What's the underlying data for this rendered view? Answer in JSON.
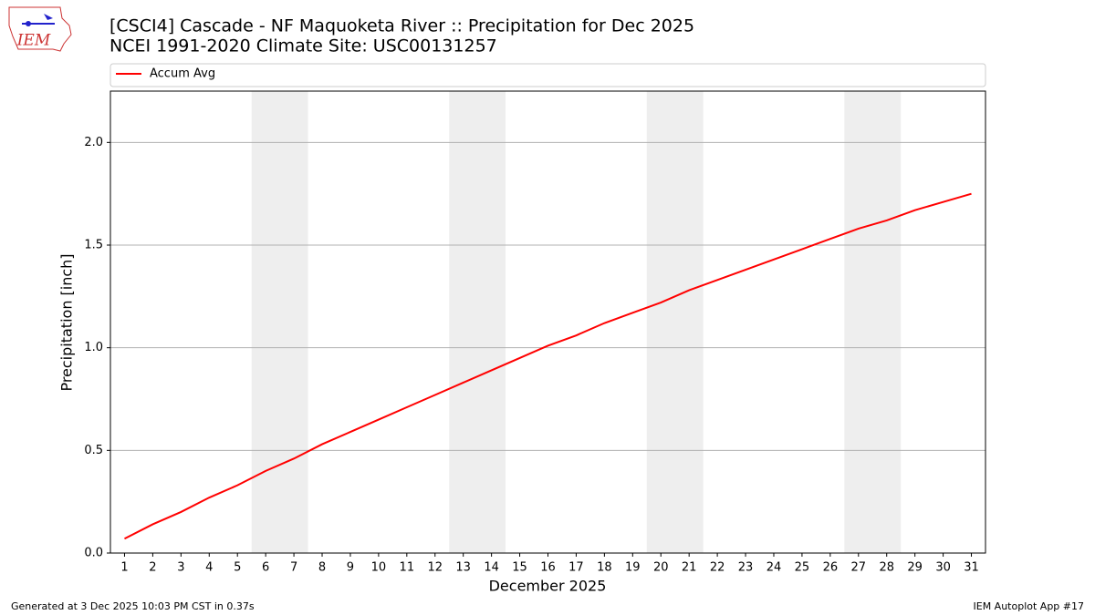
{
  "chart_data": {
    "type": "line",
    "title": "[CSCI4] Cascade - NF Maquoketa River :: Precipitation for Dec 2025",
    "subtitle": "NCEI 1991-2020 Climate Site: USC00131257",
    "logo_text": "IEM",
    "x_label": "December 2025",
    "y_label": "Precipitation [inch]",
    "x": [
      1,
      2,
      3,
      4,
      5,
      6,
      7,
      8,
      9,
      10,
      11,
      12,
      13,
      14,
      15,
      16,
      17,
      18,
      19,
      20,
      21,
      22,
      23,
      24,
      25,
      26,
      27,
      28,
      29,
      30,
      31
    ],
    "series": [
      {
        "name": "Accum Avg",
        "color": "#ff0000",
        "values": [
          0.07,
          0.14,
          0.2,
          0.27,
          0.33,
          0.4,
          0.46,
          0.53,
          0.59,
          0.65,
          0.71,
          0.77,
          0.83,
          0.89,
          0.95,
          1.01,
          1.06,
          1.12,
          1.17,
          1.22,
          1.28,
          1.33,
          1.38,
          1.43,
          1.48,
          1.53,
          1.58,
          1.62,
          1.67,
          1.71,
          1.75
        ]
      }
    ],
    "weekend_spans": [
      [
        5.5,
        7.5
      ],
      [
        12.5,
        14.5
      ],
      [
        19.5,
        21.5
      ],
      [
        26.5,
        28.5
      ]
    ],
    "weekend_color": "#eeeeee",
    "xlim": [
      0.5,
      31.5
    ],
    "xticks": [
      1,
      2,
      3,
      4,
      5,
      6,
      7,
      8,
      9,
      10,
      11,
      12,
      13,
      14,
      15,
      16,
      17,
      18,
      19,
      20,
      21,
      22,
      23,
      24,
      25,
      26,
      27,
      28,
      29,
      30,
      31
    ],
    "ylim": [
      0,
      2.25
    ],
    "yticks": [
      {
        "value": 0,
        "label": "0.0"
      },
      {
        "value": 0.5,
        "label": "0.5"
      },
      {
        "value": 1,
        "label": "1.0"
      },
      {
        "value": 1.5,
        "label": "1.5"
      },
      {
        "value": 2,
        "label": "2.0"
      }
    ],
    "grid": true,
    "legend": "top",
    "footer_left": "Generated at 3 Dec 2025 10:03 PM CST in 0.37s",
    "footer_right": "IEM Autoplot App #17"
  }
}
